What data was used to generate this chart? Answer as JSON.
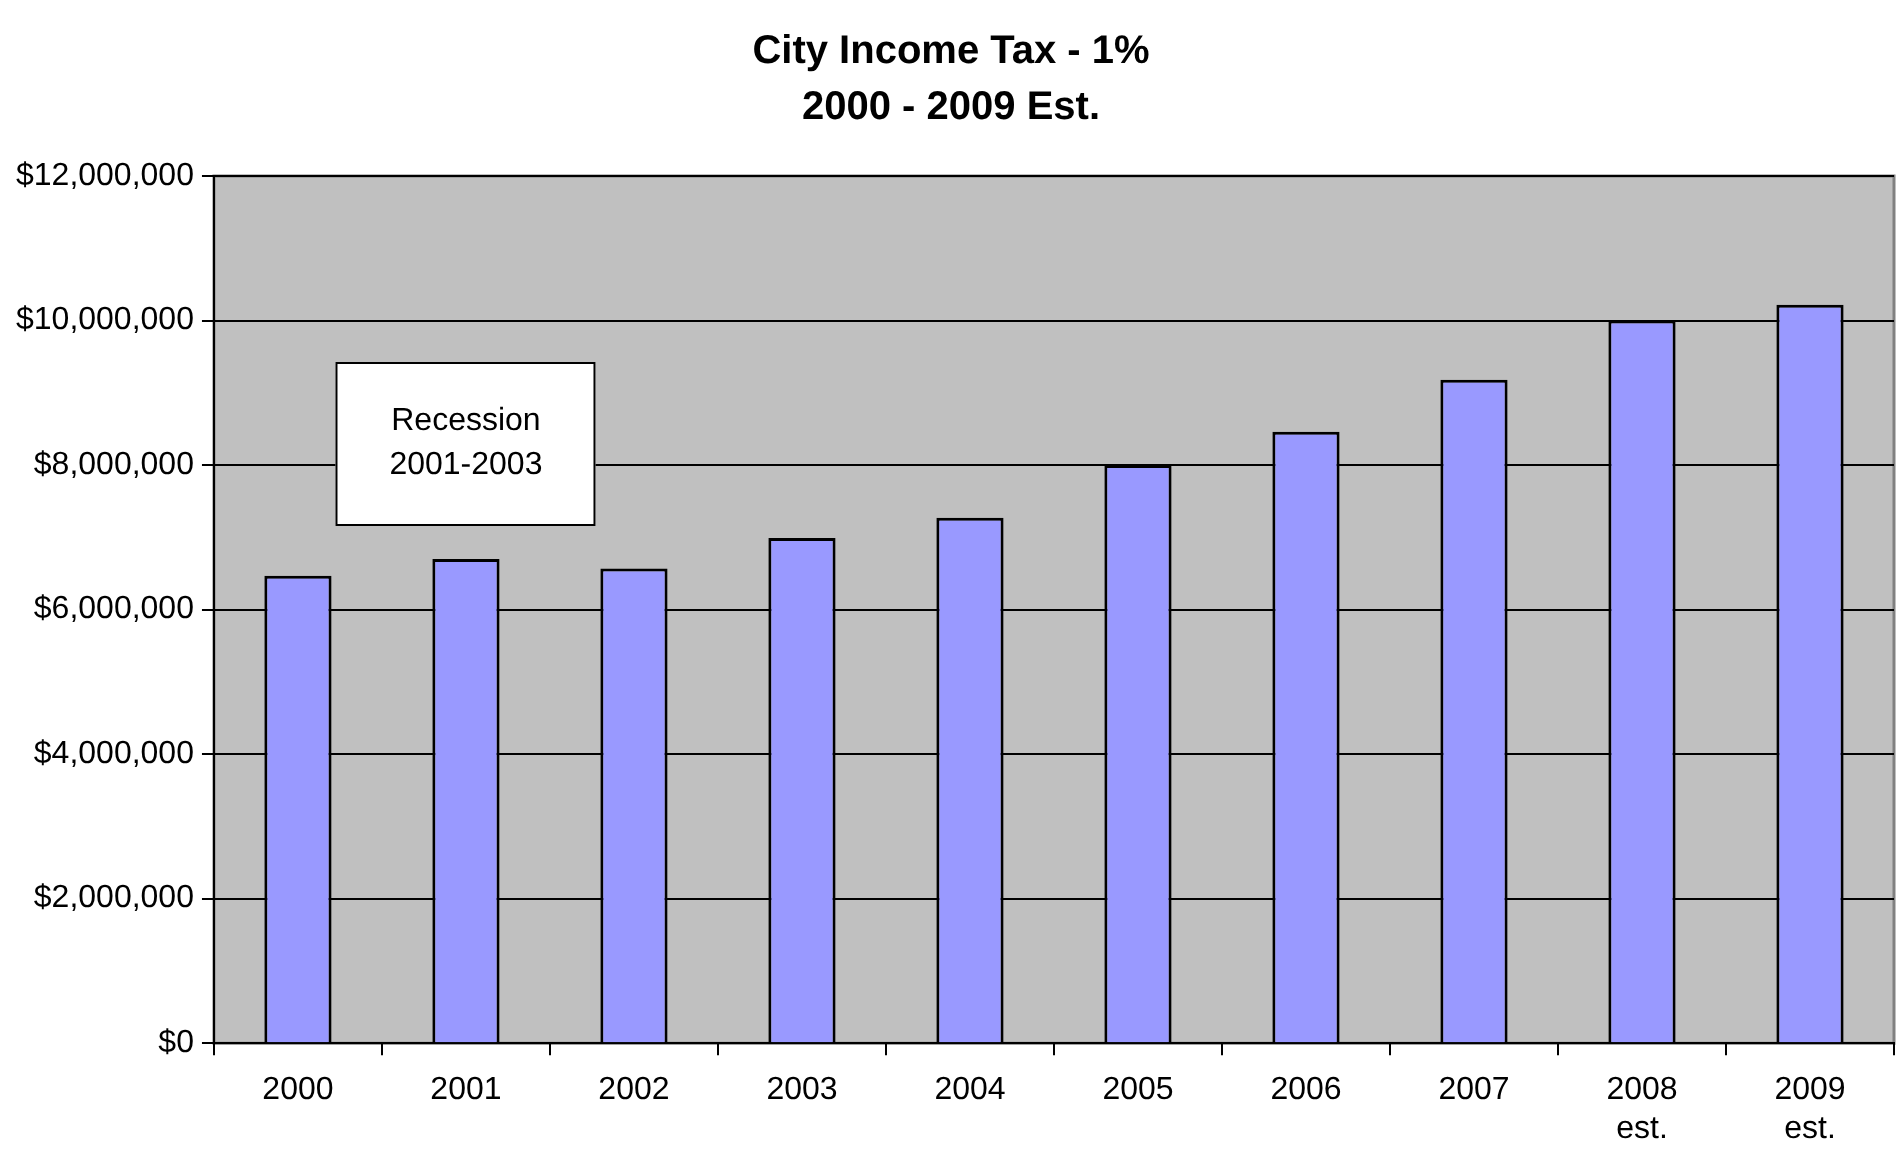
{
  "chart_data": {
    "type": "bar",
    "title": "City Income Tax - 1%",
    "subtitle": "2000 - 2009 Est.",
    "categories": [
      "2000",
      "2001",
      "2002",
      "2003",
      "2004",
      "2005",
      "2006",
      "2007",
      "2008\nest.",
      "2009\nest."
    ],
    "values": [
      6470000,
      6700000,
      6570000,
      6990000,
      7270000,
      8000000,
      8460000,
      9180000,
      10000000,
      10220000
    ],
    "color": "#9999ff",
    "ylim": [
      0,
      12000000
    ],
    "yticks": [
      {
        "value": 0,
        "label": "$0"
      },
      {
        "value": 2000000,
        "label": "$2,000,000"
      },
      {
        "value": 4000000,
        "label": "$4,000,000"
      },
      {
        "value": 6000000,
        "label": "$6,000,000"
      },
      {
        "value": 8000000,
        "label": "$8,000,000"
      },
      {
        "value": 10000000,
        "label": "$10,000,000"
      },
      {
        "value": 12000000,
        "label": "$12,000,000"
      }
    ],
    "grid": "y",
    "legend": false,
    "annotations": [
      "Recession\n2001-2003"
    ]
  }
}
